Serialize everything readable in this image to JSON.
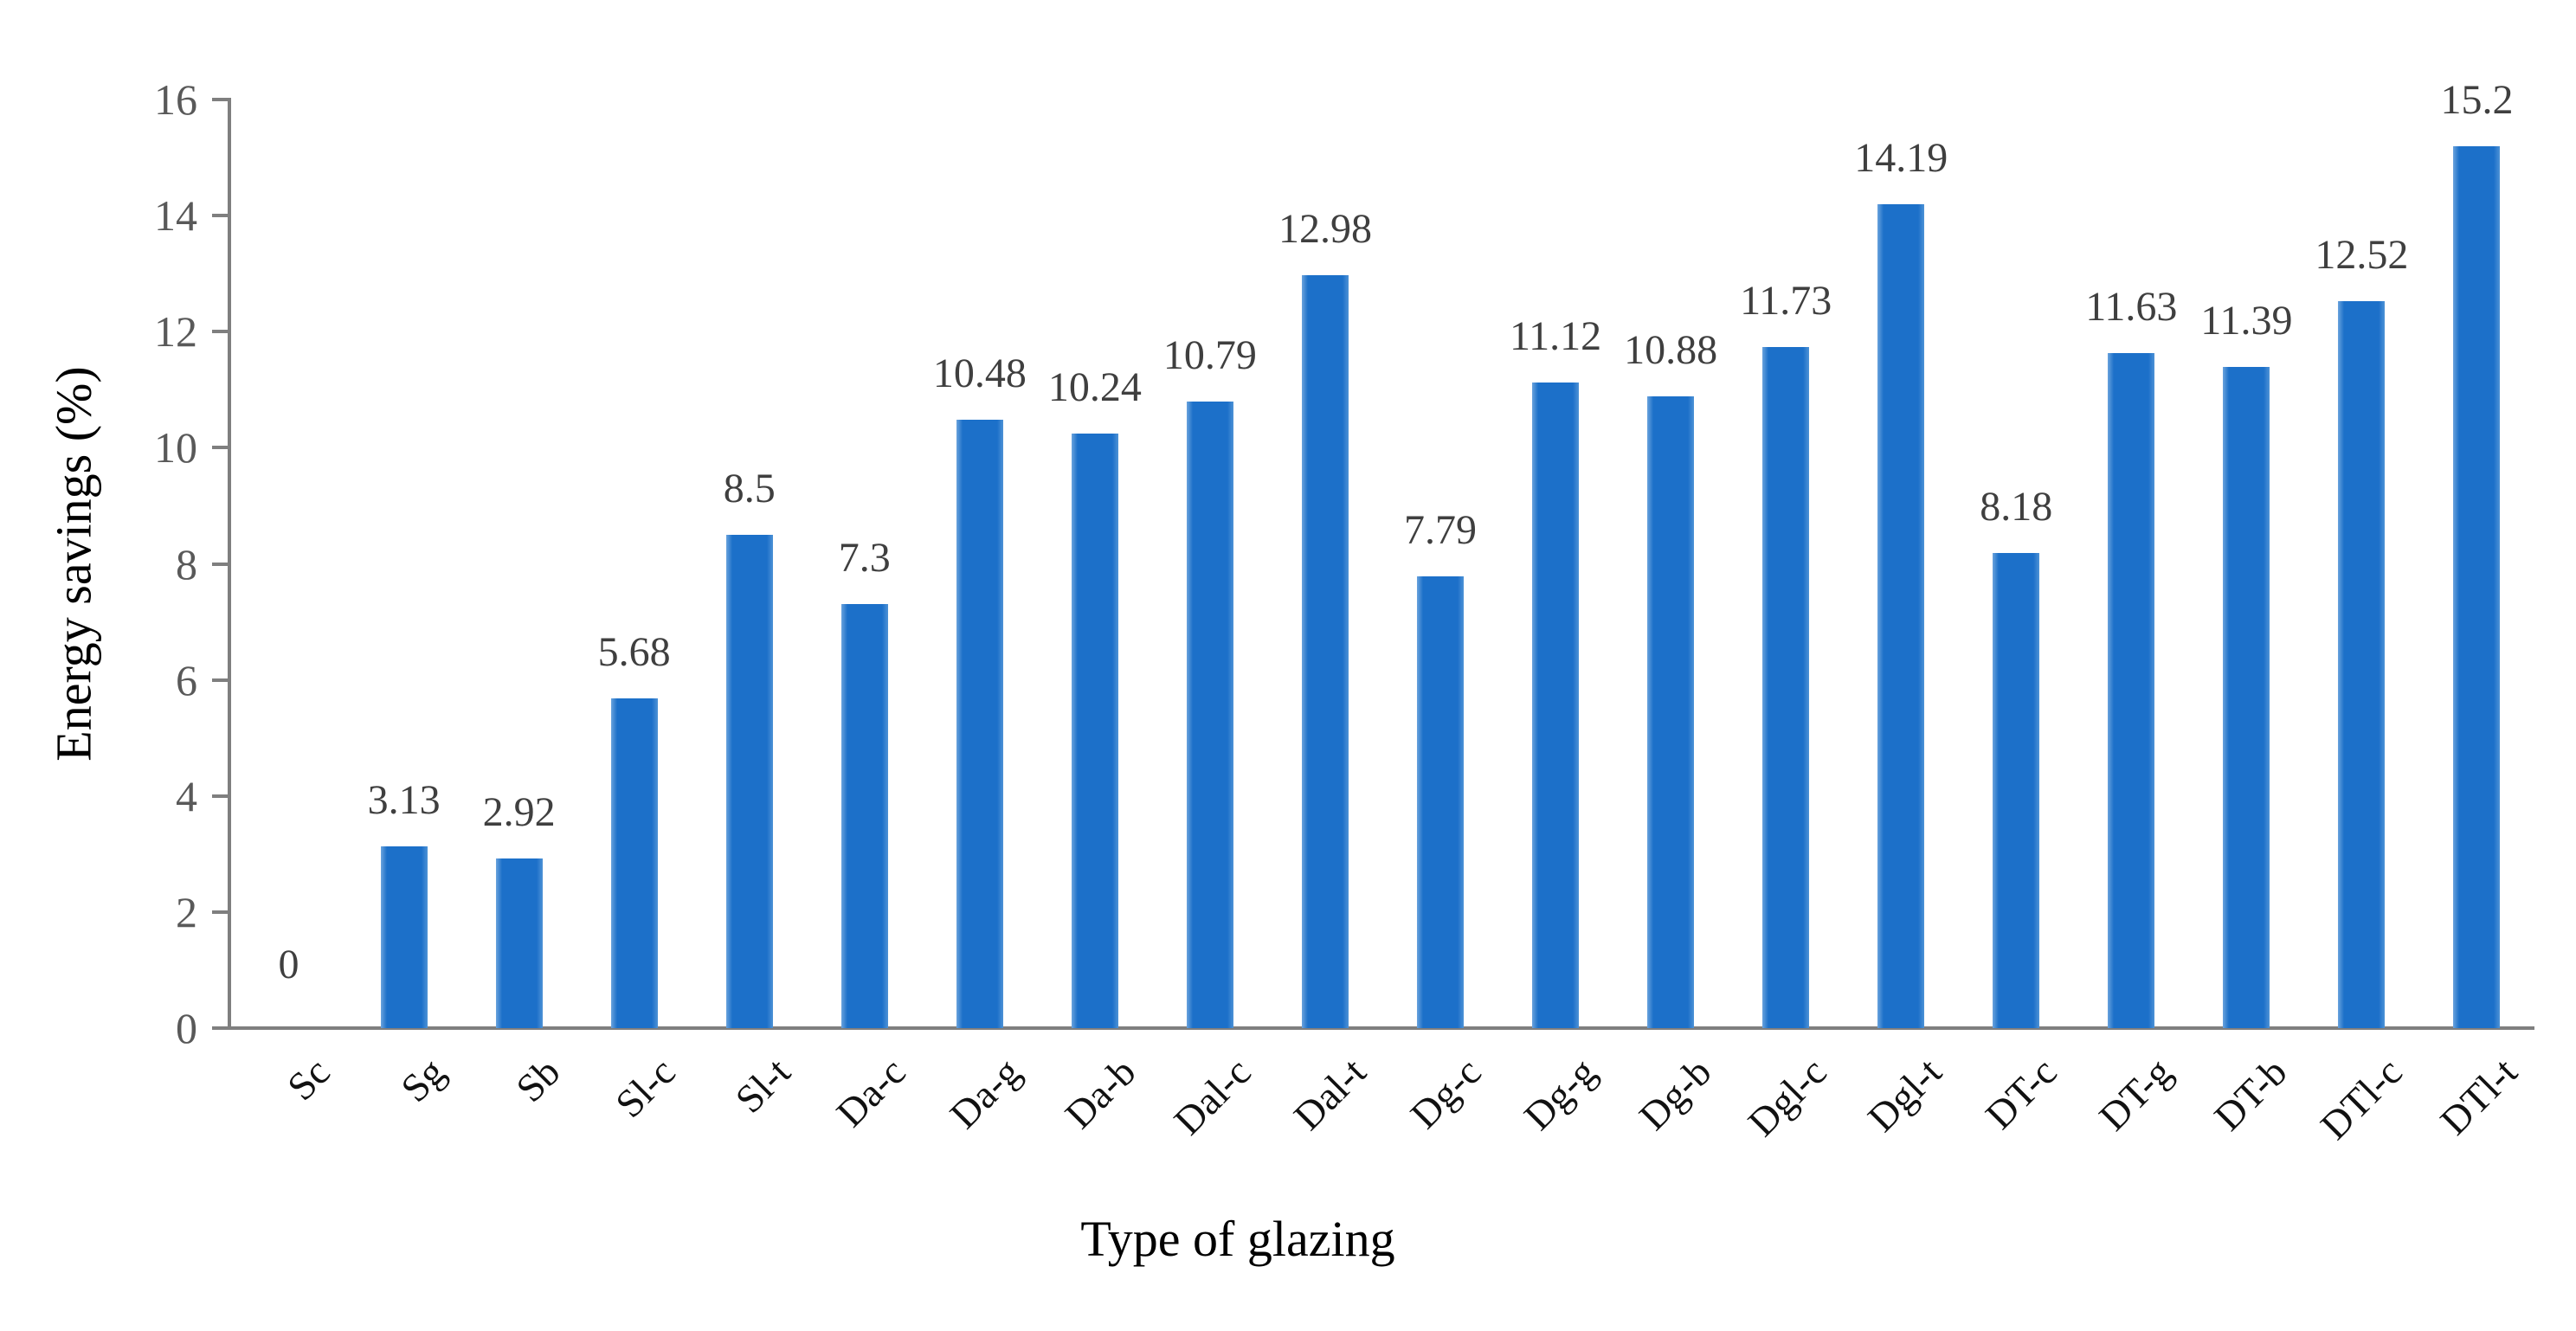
{
  "chart_data": {
    "type": "bar",
    "title": "",
    "xlabel": "Type of glazing",
    "ylabel": "Energy savings (%)",
    "categories": [
      "Sc",
      "Sg",
      "Sb",
      "Sl-c",
      "Sl-t",
      "Da-c",
      "Da-g",
      "Da-b",
      "Dal-c",
      "Dal-t",
      "Dg-c",
      "Dg-g",
      "Dg-b",
      "Dgl-c",
      "Dgl-t",
      "DT-c",
      "DT-g",
      "DT-b",
      "DTl-c",
      "DTl-t"
    ],
    "values": [
      0,
      3.13,
      2.92,
      5.68,
      8.5,
      7.3,
      10.48,
      10.24,
      10.79,
      12.98,
      7.79,
      11.12,
      10.88,
      11.73,
      14.19,
      8.18,
      11.63,
      11.39,
      12.52,
      15.2
    ],
    "data_labels": [
      "0",
      "3.13",
      "2.92",
      "5.68",
      "8.5",
      "7.3",
      "10.48",
      "10.24",
      "10.79",
      "12.98",
      "7.79",
      "11.12",
      "10.88",
      "11.73",
      "14.19",
      "8.18",
      "11.63",
      "11.39",
      "12.52",
      "15.2"
    ],
    "ylim": [
      0,
      16
    ],
    "yticks": [
      0,
      2,
      4,
      6,
      8,
      10,
      12,
      14,
      16
    ],
    "ytick_labels": [
      "0",
      "2",
      "4",
      "6",
      "8",
      "10",
      "12",
      "14",
      "16"
    ],
    "grid": false,
    "legend": "none",
    "bar_color": "#1c70c9",
    "axis_color": "#7f7f7f",
    "tick_label_color": "#595959",
    "data_label_color": "#3f3f3f",
    "category_label_color": "#111111"
  }
}
